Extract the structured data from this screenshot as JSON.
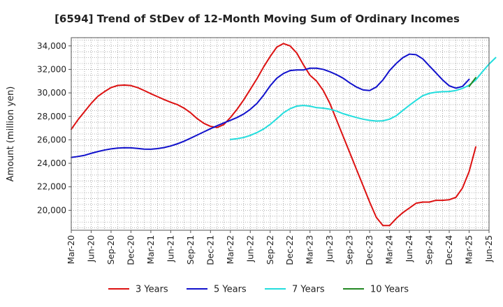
{
  "chart_data": {
    "type": "line",
    "title": "[6594]  Trend of StDev of 12-Month Moving Sum of Ordinary Incomes",
    "xlabel": "",
    "ylabel": "Amount (million yen)",
    "ylim": [
      18300,
      34700
    ],
    "y_ticks": [
      20000,
      22000,
      24000,
      26000,
      28000,
      30000,
      32000,
      34000
    ],
    "y_tick_labels": [
      "20,000",
      "22,000",
      "24,000",
      "26,000",
      "28,000",
      "30,000",
      "32,000",
      "34,000"
    ],
    "x_tick_labels": [
      "Mar-20",
      "Jun-20",
      "Sep-20",
      "Dec-20",
      "Mar-21",
      "Jun-21",
      "Sep-21",
      "Dec-21",
      "Mar-22",
      "Jun-22",
      "Sep-22",
      "Dec-22",
      "Mar-23",
      "Jun-23",
      "Sep-23",
      "Dec-23",
      "Mar-24",
      "Jun-24",
      "Sep-24",
      "Dec-24",
      "Mar-25",
      "Jun-25"
    ],
    "x_month_range": [
      0,
      63
    ],
    "grid": true,
    "legend_position": "bottom",
    "series": [
      {
        "name": "3 Years",
        "color": "#dd1111",
        "start": 0,
        "values": [
          26900,
          27700,
          28400,
          29100,
          29700,
          30100,
          30450,
          30630,
          30670,
          30620,
          30450,
          30200,
          29930,
          29680,
          29430,
          29200,
          29000,
          28700,
          28300,
          27800,
          27400,
          27150,
          27050,
          27300,
          27900,
          28600,
          29400,
          30300,
          31200,
          32200,
          33100,
          33900,
          34200,
          34000,
          33400,
          32400,
          31500,
          31000,
          30200,
          29100,
          27700,
          26300,
          24900,
          23500,
          22100,
          20700,
          19400,
          18700,
          18700,
          19300,
          19800,
          20200,
          20600,
          20700,
          20700,
          20850,
          20850,
          20900,
          21100,
          21900,
          23300,
          25400
        ]
      },
      {
        "name": "5 Years",
        "color": "#1111cc",
        "start": 0,
        "values": [
          24500,
          24580,
          24680,
          24850,
          25000,
          25130,
          25230,
          25300,
          25330,
          25320,
          25270,
          25210,
          25200,
          25250,
          25340,
          25480,
          25660,
          25880,
          26140,
          26410,
          26680,
          26950,
          27200,
          27440,
          27660,
          27900,
          28200,
          28600,
          29100,
          29800,
          30600,
          31250,
          31650,
          31900,
          31950,
          31950,
          32100,
          32100,
          32000,
          31800,
          31550,
          31250,
          30850,
          30500,
          30250,
          30200,
          30500,
          31100,
          31900,
          32500,
          33000,
          33300,
          33250,
          32900,
          32300,
          31700,
          31100,
          30600,
          30400,
          30550,
          31150
        ]
      },
      {
        "name": "7 Years",
        "color": "#22dddd",
        "start": 24,
        "values": [
          26030,
          26100,
          26200,
          26380,
          26620,
          26920,
          27320,
          27800,
          28300,
          28650,
          28870,
          28930,
          28870,
          28740,
          28700,
          28610,
          28450,
          28230,
          28060,
          27900,
          27760,
          27660,
          27600,
          27620,
          27760,
          28050,
          28500,
          28950,
          29360,
          29760,
          29960,
          30060,
          30100,
          30120,
          30200,
          30380,
          30650,
          31100,
          31800,
          32450,
          33000
        ]
      },
      {
        "name": "10 Years",
        "color": "#228822",
        "start": 60,
        "values": [
          30550,
          31300
        ]
      }
    ]
  }
}
